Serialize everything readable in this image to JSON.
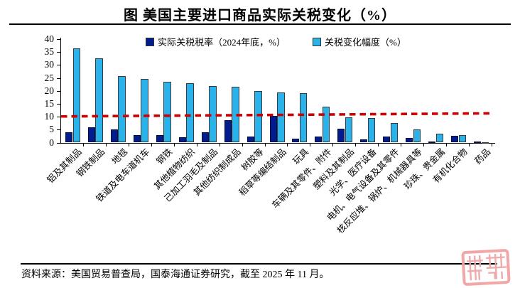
{
  "page": {
    "title": "图 美国主要进口商品实际关税变化（%）",
    "source": "资料来源：美国贸易普查局，国泰海通证券研究，截至 2025 年 11 月。"
  },
  "decorations": {
    "seal_icon": "red-seal-watermark"
  },
  "chart_data": {
    "type": "bar",
    "title": "图 美国主要进口商品实际关税变化（%）",
    "categories": [
      "铝及其制品",
      "钢铁制品",
      "地毯",
      "铁道及电车道机车",
      "钢铁",
      "其他植物纺织",
      "己加工羽毛及制品",
      "其他纺织制成品",
      "树胶等",
      "稻草等编结制品",
      "玩具",
      "车辆及其零件、附件",
      "塑料及其制品",
      "光学、医疗设备",
      "电机、电气设备及其零件",
      "核反应堆、锅炉、机械器具等",
      "珍珠、贵金属",
      "有机化合物",
      "药品"
    ],
    "series": [
      {
        "name": "实际关税税率（2024年底，%）",
        "color": "#021b8d",
        "values": [
          4.0,
          5.8,
          5.2,
          2.9,
          3.0,
          2.1,
          4.1,
          8.7,
          2.4,
          10.3,
          1.4,
          2.3,
          5.4,
          1.2,
          2.4,
          1.8,
          0.5,
          2.6,
          0.3
        ]
      },
      {
        "name": "关税变化幅度（%）",
        "color": "#2ab3ea",
        "values": [
          36.5,
          32.7,
          25.6,
          24.6,
          23.4,
          22.9,
          21.9,
          21.6,
          19.8,
          19.5,
          19.0,
          13.9,
          9.7,
          9.5,
          7.6,
          5.1,
          3.5,
          2.9,
          0.2
        ]
      }
    ],
    "reference_line": {
      "style": "dashed",
      "color": "#cc0000",
      "start_value": 10.1,
      "end_value": 11.3
    },
    "ylabel": "",
    "xlabel": "",
    "ylim": [
      0,
      40
    ],
    "ytick_step": 5,
    "grid": false,
    "legend_position": "top"
  }
}
